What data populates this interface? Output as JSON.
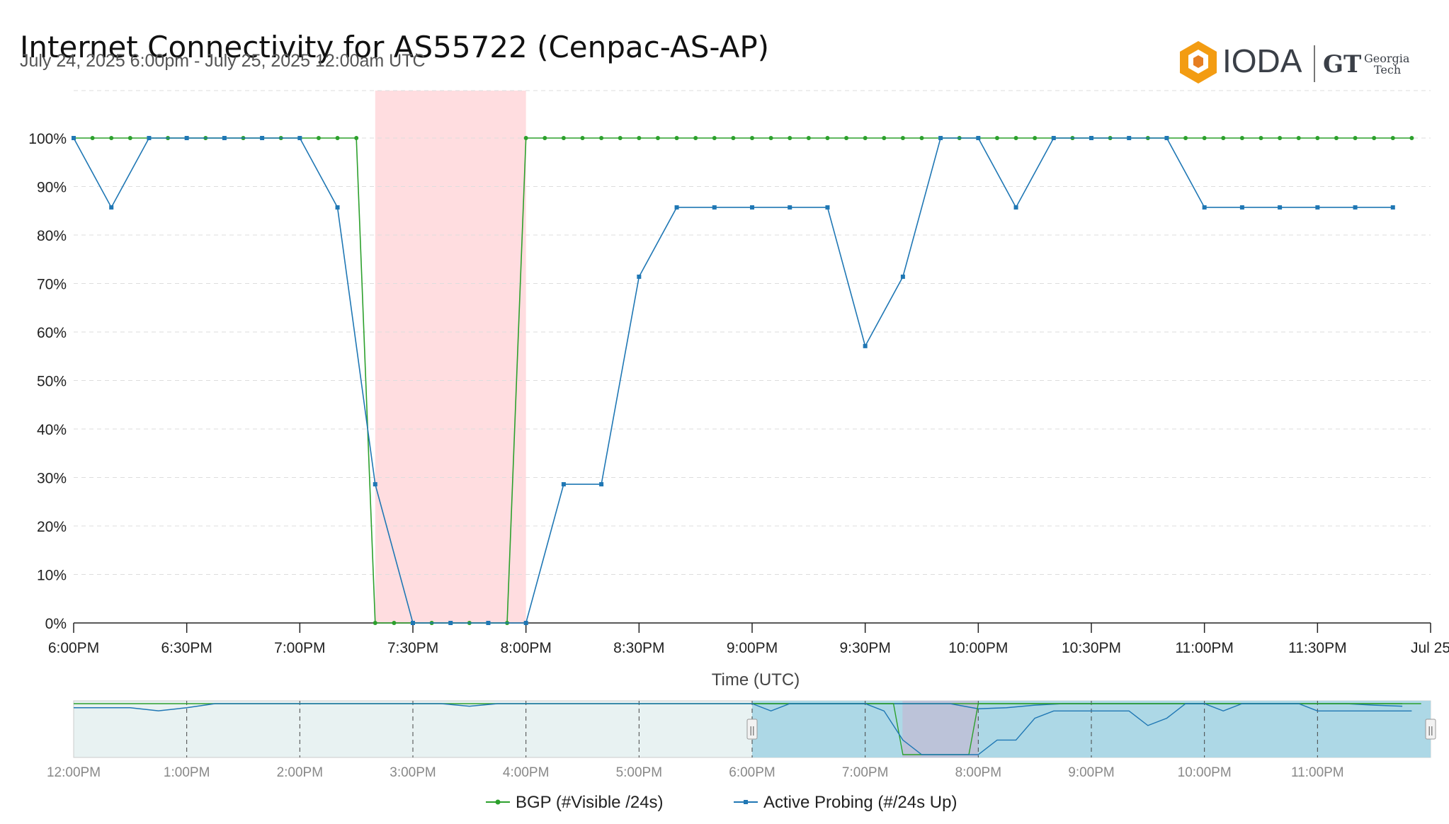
{
  "header": {
    "title": "Internet Connectivity for AS55722 (Cenpac-AS-AP)",
    "subtitle": "July 24, 2025 6:00pm - July 25, 2025 12:00am UTC"
  },
  "logo": {
    "ioda": "IODA",
    "gt_mark": "GT",
    "gt_line1": "Georgia",
    "gt_line2": "Tech",
    "hex_color": "#f39c12"
  },
  "colors": {
    "bgp": "#2ca02c",
    "active_probing": "#1f77b4",
    "outage": "#ffdde0",
    "navigator_fill": "#add8e6",
    "navigator_bg": "#e8f2f2"
  },
  "chart_data": {
    "type": "line",
    "title": "Internet Connectivity for AS55722 (Cenpac-AS-AP)",
    "xlabel": "Time (UTC)",
    "ylabel": "",
    "ylim": [
      0,
      100
    ],
    "y_ticks": [
      "0%",
      "10%",
      "20%",
      "30%",
      "40%",
      "50%",
      "60%",
      "70%",
      "80%",
      "90%",
      "100%"
    ],
    "x_range_minutes": [
      0,
      360
    ],
    "x_ticks": [
      {
        "t": 0,
        "label": "6:00PM"
      },
      {
        "t": 30,
        "label": "6:30PM"
      },
      {
        "t": 60,
        "label": "7:00PM"
      },
      {
        "t": 90,
        "label": "7:30PM"
      },
      {
        "t": 120,
        "label": "8:00PM"
      },
      {
        "t": 150,
        "label": "8:30PM"
      },
      {
        "t": 180,
        "label": "9:00PM"
      },
      {
        "t": 210,
        "label": "9:30PM"
      },
      {
        "t": 240,
        "label": "10:00PM"
      },
      {
        "t": 270,
        "label": "10:30PM"
      },
      {
        "t": 300,
        "label": "11:00PM"
      },
      {
        "t": 330,
        "label": "11:30PM"
      },
      {
        "t": 360,
        "label": "Jul 25"
      }
    ],
    "outage_band": [
      80,
      120
    ],
    "grid": true,
    "legend_position": "bottom-center",
    "series": [
      {
        "name": "BGP (#Visible /24s)",
        "interval_minutes": 5,
        "start_minute": 0,
        "values": [
          100,
          100,
          100,
          100,
          100,
          100,
          100,
          100,
          100,
          100,
          100,
          100,
          100,
          100,
          100,
          100,
          0,
          0,
          0,
          0,
          0,
          0,
          0,
          0,
          100,
          100,
          100,
          100,
          100,
          100,
          100,
          100,
          100,
          100,
          100,
          100,
          100,
          100,
          100,
          100,
          100,
          100,
          100,
          100,
          100,
          100,
          100,
          100,
          100,
          100,
          100,
          100,
          100,
          100,
          100,
          100,
          100,
          100,
          100,
          100,
          100,
          100,
          100,
          100,
          100,
          100,
          100,
          100,
          100,
          100,
          100,
          100
        ]
      },
      {
        "name": "Active Probing (#/24s Up)",
        "interval_minutes": 10,
        "start_minute": 0,
        "values": [
          100,
          85.7,
          100,
          100,
          100,
          100,
          100,
          85.7,
          28.6,
          0,
          0,
          0,
          0,
          28.6,
          28.6,
          71.4,
          85.7,
          85.7,
          85.7,
          85.7,
          85.7,
          57.1,
          71.4,
          100,
          100,
          85.7,
          100,
          100,
          100,
          100,
          85.7,
          85.7,
          85.7,
          85.7,
          85.7,
          85.7
        ]
      }
    ]
  },
  "navigator": {
    "ticks": [
      "12:00PM",
      "1:00PM",
      "2:00PM",
      "3:00PM",
      "4:00PM",
      "5:00PM",
      "6:00PM",
      "7:00PM",
      "8:00PM",
      "9:00PM",
      "10:00PM",
      "11:00PM"
    ],
    "range_hours": [
      12,
      24
    ],
    "selection_hours": [
      18,
      24
    ],
    "outage_hours": [
      19.33,
      20
    ],
    "handle_glyph": "||",
    "bgp_values_half_hourly": [
      100,
      100,
      100,
      100,
      100,
      100,
      100,
      100,
      100,
      100,
      100,
      100,
      100,
      100,
      100,
      100,
      100,
      100,
      100,
      100,
      100,
      100,
      100,
      100,
      100,
      100,
      100,
      100,
      100,
      100,
      100,
      100,
      100,
      100,
      100,
      100,
      100,
      100,
      100,
      100,
      100,
      100,
      100,
      100,
      100,
      100,
      100,
      100
    ],
    "ap_values_half_hourly": [
      92,
      92,
      92,
      86,
      92,
      100,
      100,
      100,
      100,
      100,
      100,
      100,
      100,
      100,
      95,
      100,
      100,
      100,
      100,
      100,
      100,
      100,
      100,
      100,
      100,
      100,
      100,
      100,
      100,
      100,
      100,
      100,
      90,
      92,
      97,
      100,
      100,
      100,
      100,
      100,
      100,
      100,
      100,
      100,
      100,
      100,
      97,
      95
    ]
  }
}
